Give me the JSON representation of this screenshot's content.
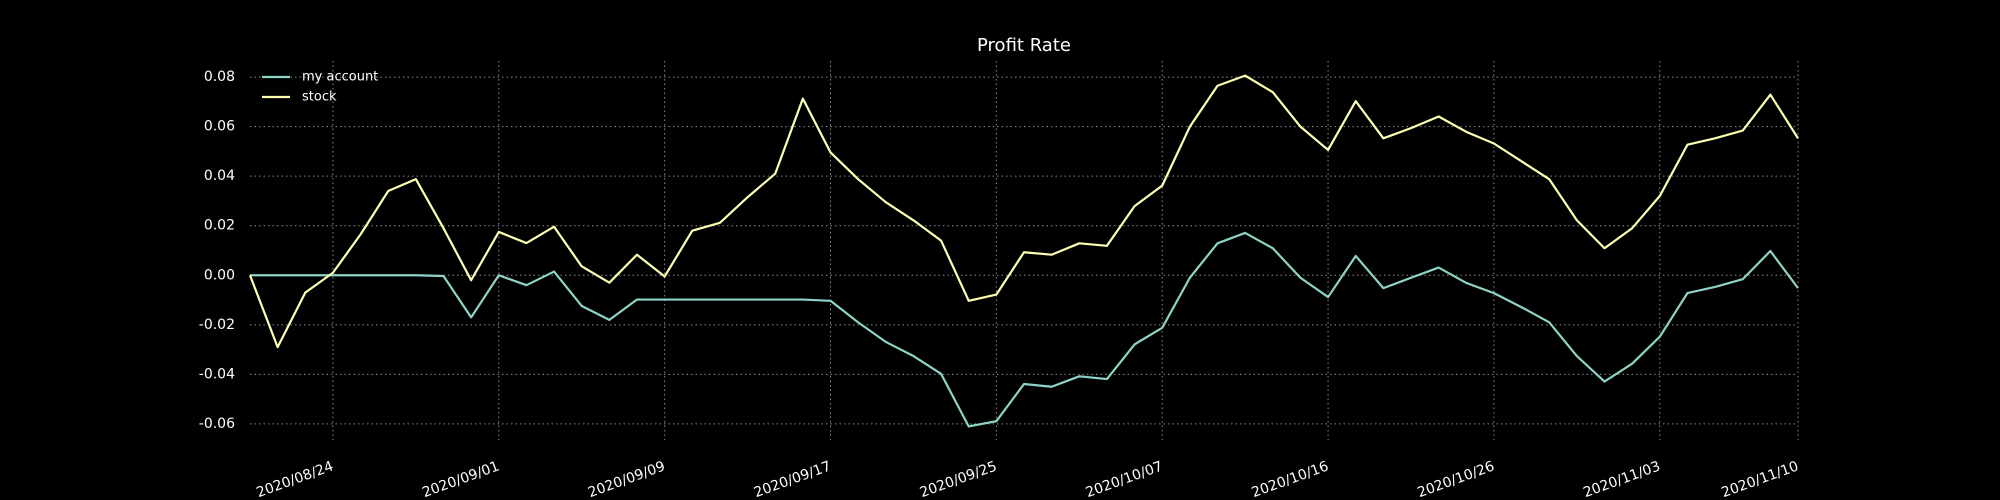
{
  "chart_data": {
    "type": "line",
    "title": "Profit Rate",
    "categories": [
      null,
      null,
      null,
      "2020/08/24",
      null,
      null,
      null,
      null,
      null,
      "2020/09/01",
      null,
      null,
      null,
      null,
      null,
      "2020/09/09",
      null,
      null,
      null,
      null,
      null,
      "2020/09/17",
      null,
      null,
      null,
      null,
      null,
      "2020/09/25",
      null,
      null,
      null,
      null,
      null,
      "2020/10/07",
      null,
      null,
      null,
      null,
      null,
      "2020/10/16",
      null,
      null,
      null,
      null,
      null,
      "2020/10/26",
      null,
      null,
      null,
      null,
      null,
      "2020/11/03",
      null,
      null,
      null,
      null,
      "2020/11/10"
    ],
    "series": [
      {
        "name": "my account",
        "color": "#8dd3c7",
        "values": [
          0,
          0,
          0,
          0,
          0,
          0,
          0,
          -0.0003,
          -0.017,
          0,
          -0.004,
          0.0015,
          -0.0124,
          -0.018,
          -0.0098,
          -0.0098,
          -0.0098,
          -0.0098,
          -0.0098,
          -0.0098,
          -0.0098,
          -0.0103,
          -0.019,
          -0.0269,
          -0.0326,
          -0.0398,
          -0.061,
          -0.0589,
          -0.0439,
          -0.045,
          -0.0408,
          -0.0419,
          -0.0279,
          -0.0212,
          -0.001,
          0.0129,
          0.0171,
          0.0109,
          -0.001,
          -0.0088,
          0.0078,
          -0.0052,
          -0.001,
          0.0031,
          -0.0031,
          -0.0072,
          -0.0129,
          -0.019,
          -0.0326,
          -0.0429,
          -0.0357,
          -0.0248,
          -0.0072,
          -0.0047,
          -0.0016,
          0.0098,
          -0.0052
        ]
      },
      {
        "name": "stock",
        "color": "#feffb3",
        "values": [
          0,
          -0.029,
          -0.007,
          0.001,
          0.0165,
          0.034,
          0.0388,
          0.019,
          -0.002,
          0.0175,
          0.013,
          0.0196,
          0.0036,
          -0.003,
          0.0083,
          -0.0005,
          0.018,
          0.0212,
          0.0315,
          0.041,
          0.0713,
          0.0496,
          0.0388,
          0.0295,
          0.0222,
          0.014,
          -0.0103,
          -0.0078,
          0.0093,
          0.0083,
          0.0129,
          0.0119,
          0.0279,
          0.0362,
          0.06,
          0.0765,
          0.0806,
          0.0739,
          0.06,
          0.0506,
          0.0703,
          0.0553,
          0.0594,
          0.0641,
          0.0579,
          0.0532,
          0.046,
          0.0388,
          0.0222,
          0.0109,
          0.019,
          0.032,
          0.0527,
          0.0553,
          0.0584,
          0.0729,
          0.0553
        ]
      }
    ],
    "ylim": [
      -0.0665,
      0.0865
    ],
    "yticks": [
      -0.06,
      -0.04,
      -0.02,
      {
        "value": 0,
        "label": "0.00"
      },
      0.02,
      0.04,
      0.06,
      0.08
    ],
    "grid": true,
    "legend": "upper left"
  }
}
